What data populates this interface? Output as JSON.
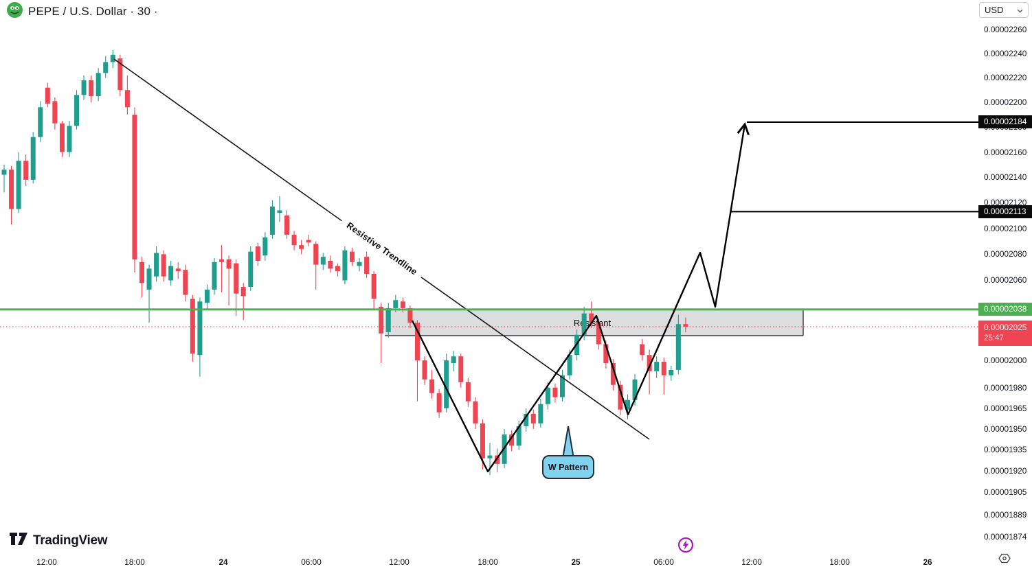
{
  "header": {
    "symbol_title": "PEPE / U.S. Dollar · 30 ·",
    "currency": "USD"
  },
  "annotations": {
    "trendline": "Resistive Trendline",
    "zone": "Resistant",
    "callout": "W Pattern"
  },
  "price_labels": {
    "target_upper": "0.00002184",
    "target_lower": "0.00002113",
    "alert_line": "0.00002038",
    "last_price": "0.00002025",
    "countdown": "25:47"
  },
  "footer": {
    "logo_text": "TradingView"
  },
  "colors": {
    "up": "#1F9E8E",
    "down": "#EF4452",
    "alert_green": "#4CAF50",
    "last_red": "#EF4452",
    "target_label_bg": "#0B0B0B",
    "callout_fill": "#7FD3EE",
    "zone_fill": "rgba(130,132,140,0.28)",
    "flash_purple": "#A91BB5",
    "pepe_green": "#3FA94C",
    "text": "#131722"
  },
  "chart_data": {
    "type": "candlestick",
    "symbol": "PEPE/USD",
    "interval_minutes": 30,
    "price_scale_factor": 1e-08,
    "note": "candle values [open,high,low,close] in units of 1e-8 USD, estimated from pixels",
    "candles": [
      [
        2142,
        2150,
        2128,
        2146
      ],
      [
        2146,
        2149,
        2103,
        2115
      ],
      [
        2115,
        2160,
        2112,
        2153
      ],
      [
        2153,
        2158,
        2133,
        2138
      ],
      [
        2138,
        2176,
        2135,
        2172
      ],
      [
        2172,
        2201,
        2168,
        2196
      ],
      [
        2212,
        2216,
        2196,
        2199
      ],
      [
        2201,
        2204,
        2178,
        2183
      ],
      [
        2183,
        2185,
        2156,
        2160
      ],
      [
        2160,
        2185,
        2156,
        2181
      ],
      [
        2181,
        2210,
        2178,
        2206
      ],
      [
        2206,
        2222,
        2202,
        2218
      ],
      [
        2218,
        2222,
        2200,
        2205
      ],
      [
        2205,
        2228,
        2201,
        2224
      ],
      [
        2224,
        2238,
        2220,
        2233
      ],
      [
        2233,
        2243,
        2228,
        2239
      ],
      [
        2236,
        2239,
        2205,
        2210
      ],
      [
        2210,
        2222,
        2190,
        2196
      ],
      [
        2190,
        2196,
        2066,
        2076
      ],
      [
        2074,
        2078,
        2047,
        2058
      ],
      [
        2053,
        2072,
        2028,
        2069
      ],
      [
        2063,
        2086,
        2059,
        2081
      ],
      [
        2080,
        2083,
        2059,
        2063
      ],
      [
        2060,
        2075,
        2056,
        2071
      ],
      [
        2069,
        2074,
        2061,
        2067
      ],
      [
        2068,
        2072,
        2044,
        2049
      ],
      [
        2046,
        2049,
        1999,
        2005
      ],
      [
        2004,
        2047,
        1988,
        2044
      ],
      [
        2043,
        2057,
        2038,
        2053
      ],
      [
        2053,
        2077,
        2049,
        2074
      ],
      [
        2076,
        2087,
        2051,
        2074
      ],
      [
        2076,
        2079,
        2041,
        2069
      ],
      [
        2073,
        2076,
        2033,
        2050
      ],
      [
        2055,
        2058,
        2030,
        2048
      ],
      [
        2055,
        2086,
        2052,
        2082
      ],
      [
        2086,
        2089,
        2071,
        2075
      ],
      [
        2079,
        2097,
        2075,
        2093
      ],
      [
        2095,
        2122,
        2092,
        2117
      ],
      [
        2112,
        2125,
        2105,
        2114
      ],
      [
        2110,
        2114,
        2092,
        2095
      ],
      [
        2095,
        2098,
        2083,
        2087
      ],
      [
        2087,
        2091,
        2080,
        2084
      ],
      [
        2091,
        2095,
        2086,
        2089
      ],
      [
        2088,
        2090,
        2053,
        2072
      ],
      [
        2072,
        2081,
        2068,
        2078
      ],
      [
        2075,
        2079,
        2066,
        2069
      ],
      [
        2071,
        2073,
        2063,
        2067
      ],
      [
        2060,
        2086,
        2057,
        2083
      ],
      [
        2082,
        2085,
        2071,
        2074
      ],
      [
        2071,
        2077,
        2067,
        2074
      ],
      [
        2078,
        2082,
        2062,
        2065
      ],
      [
        2065,
        2067,
        2038,
        2046
      ],
      [
        2040,
        2043,
        1998,
        2020
      ],
      [
        2021,
        2043,
        2017,
        2039
      ],
      [
        2039,
        2049,
        2036,
        2045
      ],
      [
        2044,
        2047,
        2036,
        2039
      ],
      [
        2039,
        2041,
        2024,
        2028
      ],
      [
        2028,
        2030,
        1970,
        2000
      ],
      [
        2000,
        2003,
        1982,
        1986
      ],
      [
        1986,
        1993,
        1972,
        1976
      ],
      [
        1976,
        1979,
        1958,
        1962
      ],
      [
        1965,
        2005,
        1962,
        2000
      ],
      [
        1998,
        2007,
        1992,
        2003
      ],
      [
        2003,
        2005,
        1980,
        1984
      ],
      [
        1984,
        1987,
        1966,
        1970
      ],
      [
        1970,
        1973,
        1950,
        1954
      ],
      [
        1954,
        1957,
        1921,
        1929
      ],
      [
        1929,
        1940,
        1917,
        1931
      ],
      [
        1931,
        1936,
        1919,
        1925
      ],
      [
        1925,
        1950,
        1922,
        1946
      ],
      [
        1946,
        1949,
        1934,
        1938
      ],
      [
        1938,
        1956,
        1935,
        1952
      ],
      [
        1952,
        1965,
        1948,
        1961
      ],
      [
        1961,
        1964,
        1950,
        1954
      ],
      [
        1954,
        1972,
        1951,
        1968
      ],
      [
        1968,
        1984,
        1964,
        1980
      ],
      [
        1980,
        1983,
        1969,
        1973
      ],
      [
        1973,
        1993,
        1970,
        1989
      ],
      [
        1989,
        2008,
        1986,
        2004
      ],
      [
        2004,
        2023,
        2000,
        2019
      ],
      [
        2019,
        2040,
        2015,
        2035
      ],
      [
        2035,
        2044,
        2024,
        2028
      ],
      [
        2028,
        2031,
        2008,
        2012
      ],
      [
        2012,
        2015,
        1994,
        1998
      ],
      [
        1998,
        2001,
        1978,
        1982
      ],
      [
        1982,
        1985,
        1960,
        1964
      ],
      [
        1964,
        1975,
        1957,
        1971
      ],
      [
        1971,
        1990,
        1967,
        1986
      ],
      [
        2012,
        2016,
        2000,
        2004
      ],
      [
        2004,
        2008,
        1975,
        1992
      ],
      [
        1992,
        2003,
        1987,
        1999
      ],
      [
        1999,
        2002,
        1975,
        1989
      ],
      [
        1989,
        1996,
        1985,
        1993
      ],
      [
        1993,
        2034,
        1990,
        2027
      ],
      [
        2027,
        2032,
        2021,
        2025
      ]
    ],
    "price_axis_ticks": [
      2260,
      2240,
      2220,
      2200,
      2180,
      2160,
      2140,
      2120,
      2100,
      2080,
      2060,
      2000,
      1980,
      1965,
      1950,
      1935,
      1920,
      1905,
      1889,
      1874
    ],
    "time_axis_ticks": [
      {
        "label": "12:00",
        "major": false
      },
      {
        "label": "18:00",
        "major": false
      },
      {
        "label": "24",
        "major": true
      },
      {
        "label": "06:00",
        "major": false
      },
      {
        "label": "12:00",
        "major": false
      },
      {
        "label": "18:00",
        "major": false
      },
      {
        "label": "25",
        "major": true
      },
      {
        "label": "06:00",
        "major": false
      },
      {
        "label": "12:00",
        "major": false
      },
      {
        "label": "18:00",
        "major": false
      },
      {
        "label": "26",
        "major": true
      }
    ],
    "levels": {
      "resistance_zone_label": "Resistant",
      "alert_line_price": 2038,
      "last_price": 2025,
      "upper_target_price": 2184,
      "lower_target_price": 2113
    }
  }
}
